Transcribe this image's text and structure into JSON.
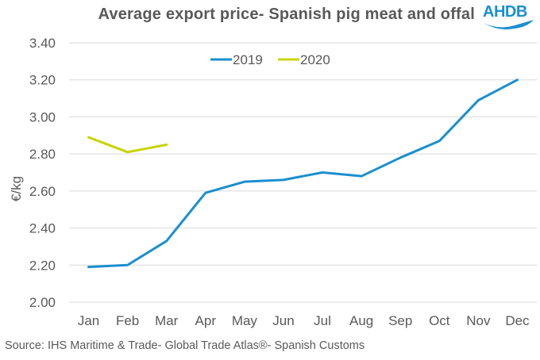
{
  "chart_data": {
    "type": "line",
    "title": "Average export price- Spanish pig meat and offal",
    "xlabel": "",
    "ylabel": "€/kg",
    "categories": [
      "Jan",
      "Feb",
      "Mar",
      "Apr",
      "May",
      "Jun",
      "Jul",
      "Aug",
      "Sep",
      "Oct",
      "Nov",
      "Dec"
    ],
    "yticks": [
      "2.00",
      "2.20",
      "2.40",
      "2.60",
      "2.80",
      "3.00",
      "3.20",
      "3.40"
    ],
    "ylim": [
      2.0,
      3.4
    ],
    "grid": true,
    "legend_position": "top-center",
    "series": [
      {
        "name": "2019",
        "color": "#1a8fd0",
        "values": [
          2.19,
          2.2,
          2.33,
          2.59,
          2.65,
          2.66,
          2.7,
          2.68,
          2.78,
          2.87,
          3.09,
          3.2
        ]
      },
      {
        "name": "2020",
        "color": "#c8d400",
        "values": [
          2.89,
          2.81,
          2.85
        ]
      }
    ]
  },
  "logo": {
    "text": "AHDB",
    "color": "#1a8fd0"
  },
  "source": "Source: IHS Maritime & Trade- Global Trade Atlas®- Spanish Customs"
}
